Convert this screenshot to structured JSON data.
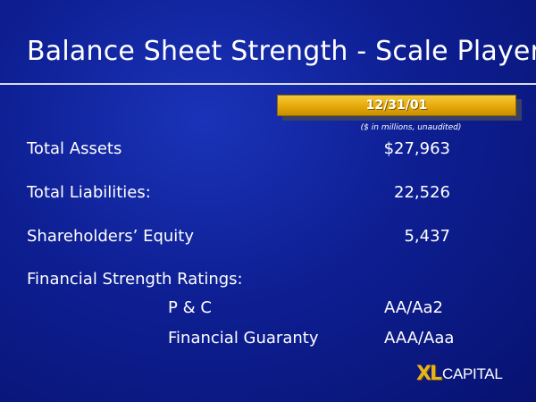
{
  "slide": {
    "title": "Balance Sheet Strength - Scale Player",
    "date_header": "12/31/01",
    "units_note": "($ in millions, unaudited)"
  },
  "rows": [
    {
      "label": "Total Assets",
      "value": "$27,963"
    },
    {
      "label": "Total Liabilities:",
      "value": "22,526"
    },
    {
      "label": "Shareholders’ Equity",
      "value": "5,437"
    }
  ],
  "ratings": {
    "heading": "Financial Strength Ratings:",
    "items": [
      {
        "label": "P & C",
        "value": "AA/Aa2"
      },
      {
        "label": "Financial Guaranty",
        "value": "AAA/Aaa"
      }
    ]
  },
  "logo": {
    "mark": "XL",
    "word": "CAPITAL",
    "color": "#e6b21e"
  },
  "colors": {
    "background": "#0e1f93",
    "accent": "#e6a908",
    "text": "#ffffff"
  }
}
